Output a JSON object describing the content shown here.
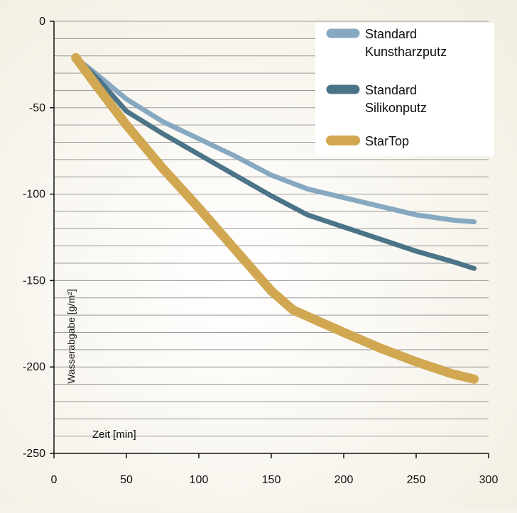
{
  "chart_data": {
    "type": "line",
    "xlabel": "Zeit [min]",
    "ylabel": "Wasserabgabe [g/m²]",
    "xlim": [
      0,
      300
    ],
    "ylim": [
      -250,
      0
    ],
    "x_ticks": [
      0,
      50,
      100,
      150,
      200,
      250,
      300
    ],
    "y_ticks": [
      0,
      -50,
      -100,
      -150,
      -200,
      -250
    ],
    "x_tick_labels": [
      "0",
      "50",
      "100",
      "150",
      "200",
      "250",
      "300"
    ],
    "y_tick_labels": [
      "0",
      "-50",
      "-100",
      "-150",
      "-200",
      "-250"
    ],
    "y_gridline_step": 10,
    "grid": true,
    "legend_position": "top-right",
    "series": [
      {
        "name": "Standard Kunstharzputz",
        "legend_lines": [
          "Standard",
          "Kunstharzputz"
        ],
        "color": "#86a9c1",
        "stroke": "medium",
        "points": [
          [
            15,
            -21
          ],
          [
            30,
            -31
          ],
          [
            50,
            -45
          ],
          [
            75,
            -58
          ],
          [
            100,
            -68
          ],
          [
            125,
            -78
          ],
          [
            150,
            -89
          ],
          [
            175,
            -97
          ],
          [
            200,
            -102
          ],
          [
            225,
            -107
          ],
          [
            250,
            -112
          ],
          [
            275,
            -115
          ],
          [
            290,
            -116
          ]
        ]
      },
      {
        "name": "Standard Silikonputz",
        "legend_lines": [
          "Standard",
          "Silikonputz"
        ],
        "color": "#4c7489",
        "stroke": "medium",
        "points": [
          [
            15,
            -21
          ],
          [
            30,
            -33
          ],
          [
            50,
            -52
          ],
          [
            75,
            -65
          ],
          [
            100,
            -77
          ],
          [
            125,
            -89
          ],
          [
            150,
            -101
          ],
          [
            175,
            -112
          ],
          [
            200,
            -119
          ],
          [
            225,
            -126
          ],
          [
            250,
            -133
          ],
          [
            275,
            -139
          ],
          [
            290,
            -143
          ]
        ]
      },
      {
        "name": "StarTop",
        "legend_lines": [
          "StarTop"
        ],
        "color": "#d1a851",
        "stroke": "thick",
        "points": [
          [
            15,
            -21
          ],
          [
            30,
            -38
          ],
          [
            50,
            -60
          ],
          [
            75,
            -85
          ],
          [
            100,
            -108
          ],
          [
            125,
            -132
          ],
          [
            150,
            -156
          ],
          [
            165,
            -167
          ],
          [
            200,
            -180
          ],
          [
            225,
            -189
          ],
          [
            250,
            -197
          ],
          [
            275,
            -204
          ],
          [
            290,
            -207
          ]
        ]
      }
    ]
  }
}
